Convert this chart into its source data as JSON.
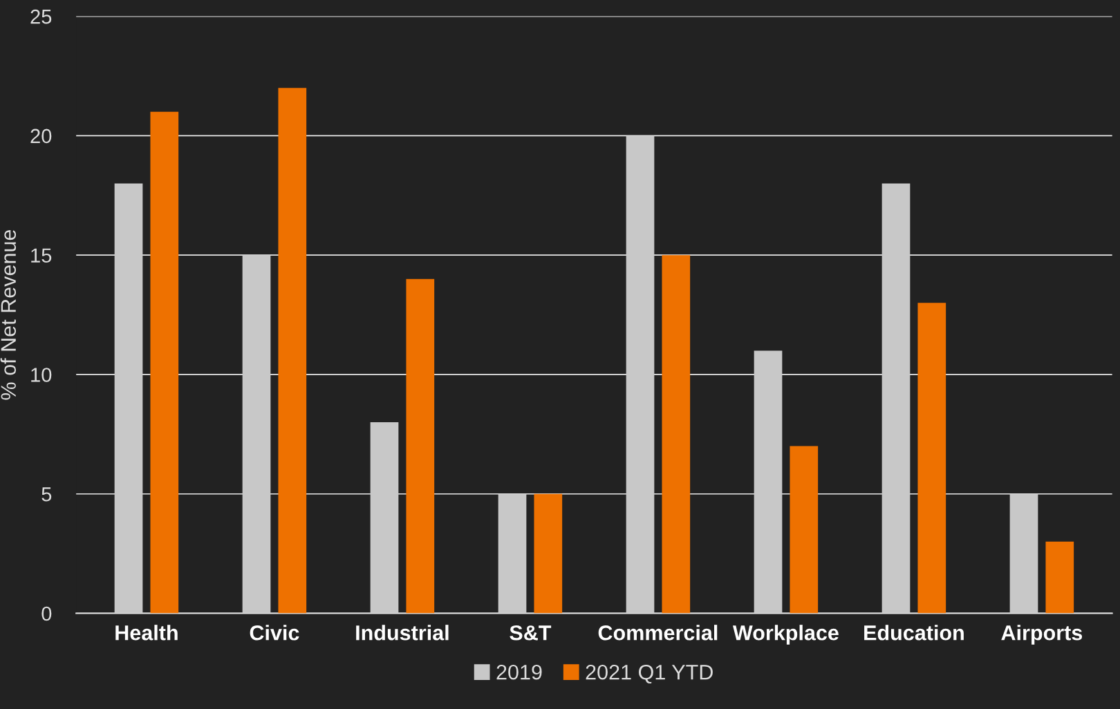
{
  "chart_data": {
    "type": "bar",
    "ylabel": "% of Net Revenue",
    "categories": [
      "Health",
      "Civic",
      "Industrial",
      "S&T",
      "Commercial",
      "Workplace",
      "Education",
      "Airports"
    ],
    "series": [
      {
        "name": "2019",
        "color": "#c8c8c8",
        "values": [
          18,
          15,
          8,
          5,
          20,
          11,
          18,
          5
        ]
      },
      {
        "name": "2021 Q1 YTD",
        "color": "#ee7100",
        "values": [
          21,
          22,
          14,
          5,
          15,
          7,
          13,
          3
        ]
      }
    ],
    "ylim": [
      0,
      25
    ],
    "yticks": [
      0,
      5,
      10,
      15,
      20,
      25
    ],
    "grid": "y",
    "legend": "bottom"
  }
}
